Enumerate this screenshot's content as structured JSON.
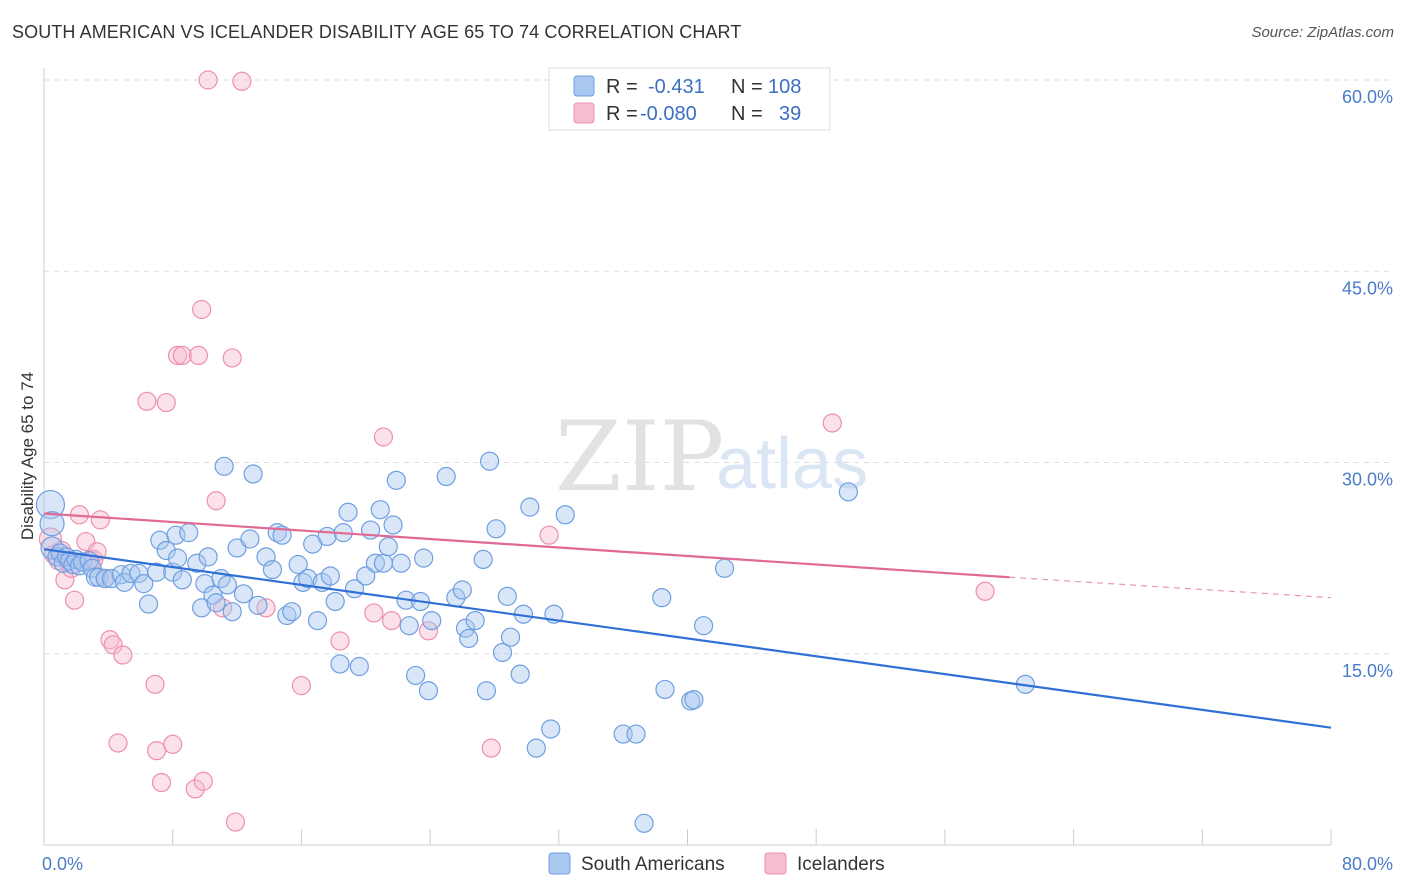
{
  "title": "SOUTH AMERICAN VS ICELANDER DISABILITY AGE 65 TO 74 CORRELATION CHART",
  "source": "Source: ZipAtlas.com",
  "watermark": {
    "zip": "ZIP",
    "atlas": "atlas"
  },
  "colors": {
    "blue_fill": "#a9c8ef",
    "blue_stroke": "#6f9fe0",
    "blue_line": "#2f6fd6",
    "pink_fill": "#f7bdd0",
    "pink_stroke": "#ee8fae",
    "pink_line": "#e06a93",
    "grid": "#dddddd",
    "axis_text": "#4a7cc9"
  },
  "legend_box": {
    "rows": [
      {
        "r_label": "R =",
        "r_value": "-0.431",
        "n_label": "N =",
        "n_value": "108"
      },
      {
        "r_label": "R =",
        "r_value": "-0.080",
        "n_label": "N =",
        "n_value": "39"
      }
    ]
  },
  "bottom_legend": [
    "South Americans",
    "Icelanders"
  ],
  "chart_data": {
    "type": "scatter",
    "title": "SOUTH AMERICAN VS ICELANDER DISABILITY AGE 65 TO 74 CORRELATION CHART",
    "xlabel": "",
    "ylabel": "Disability Age 65 to 74",
    "xlim": [
      0,
      80
    ],
    "ylim": [
      0,
      60
    ],
    "x_tick_labels": [
      "0.0%",
      "80.0%"
    ],
    "y_tick_labels": [
      "15.0%",
      "30.0%",
      "45.0%",
      "60.0%"
    ],
    "y_ticks": [
      15,
      30,
      45,
      60
    ],
    "grid": "horizontal dashed",
    "legend_placement": "top-center",
    "series": [
      {
        "name": "South Americans",
        "R": -0.431,
        "N": 108,
        "trend": {
          "x0": 0,
          "y0": 23.2,
          "x1": 80,
          "y1": 9.2
        },
        "points": [
          [
            0.4,
            26.7
          ],
          [
            0.5,
            25.2
          ],
          [
            0.5,
            23.3
          ],
          [
            0.8,
            22.6
          ],
          [
            1.0,
            22.9
          ],
          [
            1.2,
            22.1
          ],
          [
            1.4,
            22.6
          ],
          [
            1.6,
            22.3
          ],
          [
            1.8,
            22.0
          ],
          [
            2.0,
            22.4
          ],
          [
            2.2,
            21.9
          ],
          [
            2.4,
            22.2
          ],
          [
            2.8,
            22.3
          ],
          [
            3.0,
            21.7
          ],
          [
            3.2,
            21.0
          ],
          [
            3.4,
            21.0
          ],
          [
            3.8,
            20.9
          ],
          [
            4.2,
            20.9
          ],
          [
            4.8,
            21.2
          ],
          [
            5.0,
            20.6
          ],
          [
            5.4,
            21.3
          ],
          [
            5.9,
            21.3
          ],
          [
            6.2,
            20.5
          ],
          [
            6.5,
            18.9
          ],
          [
            7.0,
            21.4
          ],
          [
            7.2,
            23.9
          ],
          [
            7.6,
            23.1
          ],
          [
            8.0,
            21.4
          ],
          [
            8.3,
            22.5
          ],
          [
            8.6,
            20.8
          ],
          [
            8.2,
            24.3
          ],
          [
            9.0,
            24.5
          ],
          [
            9.5,
            22.1
          ],
          [
            10.0,
            20.5
          ],
          [
            10.2,
            22.6
          ],
          [
            9.8,
            18.6
          ],
          [
            10.5,
            19.6
          ],
          [
            10.7,
            19.0
          ],
          [
            11.0,
            20.9
          ],
          [
            11.4,
            20.4
          ],
          [
            11.7,
            18.3
          ],
          [
            12.0,
            23.3
          ],
          [
            11.2,
            29.7
          ],
          [
            12.4,
            19.7
          ],
          [
            12.8,
            24.0
          ],
          [
            13.0,
            29.1
          ],
          [
            13.3,
            18.8
          ],
          [
            13.8,
            22.6
          ],
          [
            14.2,
            21.6
          ],
          [
            14.5,
            24.5
          ],
          [
            14.8,
            24.3
          ],
          [
            15.1,
            18.0
          ],
          [
            15.4,
            18.3
          ],
          [
            15.8,
            22.0
          ],
          [
            16.1,
            20.6
          ],
          [
            16.4,
            20.9
          ],
          [
            16.7,
            23.6
          ],
          [
            17.0,
            17.6
          ],
          [
            17.3,
            20.6
          ],
          [
            17.6,
            24.2
          ],
          [
            17.8,
            21.1
          ],
          [
            18.1,
            19.1
          ],
          [
            18.4,
            14.2
          ],
          [
            18.6,
            24.5
          ],
          [
            18.9,
            26.1
          ],
          [
            19.3,
            20.1
          ],
          [
            19.6,
            14.0
          ],
          [
            20.0,
            21.1
          ],
          [
            20.3,
            24.7
          ],
          [
            20.6,
            22.1
          ],
          [
            20.9,
            26.3
          ],
          [
            21.1,
            22.1
          ],
          [
            21.4,
            23.4
          ],
          [
            21.7,
            25.1
          ],
          [
            21.9,
            28.6
          ],
          [
            22.2,
            22.1
          ],
          [
            22.5,
            19.2
          ],
          [
            22.7,
            17.2
          ],
          [
            23.1,
            13.3
          ],
          [
            23.4,
            19.1
          ],
          [
            23.6,
            22.5
          ],
          [
            23.9,
            12.1
          ],
          [
            24.1,
            17.6
          ],
          [
            25.0,
            28.9
          ],
          [
            25.6,
            19.4
          ],
          [
            26.0,
            20.0
          ],
          [
            26.2,
            17.0
          ],
          [
            26.4,
            16.2
          ],
          [
            26.8,
            17.6
          ],
          [
            27.3,
            22.4
          ],
          [
            27.5,
            12.1
          ],
          [
            27.7,
            30.1
          ],
          [
            28.1,
            24.8
          ],
          [
            28.5,
            15.1
          ],
          [
            28.8,
            19.5
          ],
          [
            29.0,
            16.3
          ],
          [
            29.6,
            13.4
          ],
          [
            29.8,
            18.1
          ],
          [
            30.2,
            26.5
          ],
          [
            30.6,
            7.6
          ],
          [
            31.5,
            9.1
          ],
          [
            31.7,
            18.1
          ],
          [
            32.4,
            25.9
          ],
          [
            36.0,
            8.7
          ],
          [
            36.8,
            8.7
          ],
          [
            37.3,
            1.7
          ],
          [
            38.4,
            19.4
          ],
          [
            38.6,
            12.2
          ],
          [
            40.2,
            11.3
          ],
          [
            40.4,
            11.4
          ],
          [
            41.0,
            17.2
          ],
          [
            42.3,
            21.7
          ],
          [
            50.0,
            27.7
          ],
          [
            61.0,
            12.6
          ]
        ]
      },
      {
        "name": "Icelanders",
        "R": -0.08,
        "N": 39,
        "trend": {
          "x0": 0,
          "y0": 26.0,
          "x1": 60,
          "y1": 21.0,
          "dashed_to_x": 80,
          "dashed_to_y": 19.4
        },
        "points": [
          [
            0.4,
            24.0
          ],
          [
            0.6,
            22.8
          ],
          [
            0.9,
            22.3
          ],
          [
            1.1,
            23.1
          ],
          [
            1.3,
            20.8
          ],
          [
            1.5,
            22.2
          ],
          [
            1.7,
            21.7
          ],
          [
            1.9,
            19.2
          ],
          [
            2.2,
            25.9
          ],
          [
            2.6,
            23.8
          ],
          [
            2.9,
            22.4
          ],
          [
            3.1,
            22.4
          ],
          [
            3.3,
            23.0
          ],
          [
            3.5,
            25.5
          ],
          [
            3.8,
            20.9
          ],
          [
            4.1,
            16.1
          ],
          [
            4.3,
            15.7
          ],
          [
            4.6,
            8.0
          ],
          [
            4.9,
            14.9
          ],
          [
            6.4,
            34.8
          ],
          [
            6.9,
            12.6
          ],
          [
            7.0,
            7.4
          ],
          [
            7.3,
            4.9
          ],
          [
            7.6,
            34.7
          ],
          [
            8.0,
            7.9
          ],
          [
            8.3,
            38.4
          ],
          [
            8.6,
            38.4
          ],
          [
            9.4,
            4.4
          ],
          [
            9.6,
            38.4
          ],
          [
            9.8,
            42.0
          ],
          [
            9.9,
            5.0
          ],
          [
            10.2,
            60.0
          ],
          [
            10.7,
            27.0
          ],
          [
            11.1,
            18.6
          ],
          [
            11.7,
            38.2
          ],
          [
            11.9,
            1.8
          ],
          [
            12.3,
            59.9
          ],
          [
            13.8,
            18.6
          ],
          [
            16.0,
            12.5
          ],
          [
            18.4,
            16.0
          ],
          [
            20.5,
            18.2
          ],
          [
            21.1,
            32.0
          ],
          [
            21.6,
            17.6
          ],
          [
            23.9,
            16.8
          ],
          [
            27.8,
            7.6
          ],
          [
            31.4,
            24.3
          ],
          [
            49.0,
            33.1
          ],
          [
            58.5,
            19.9
          ]
        ]
      }
    ]
  }
}
